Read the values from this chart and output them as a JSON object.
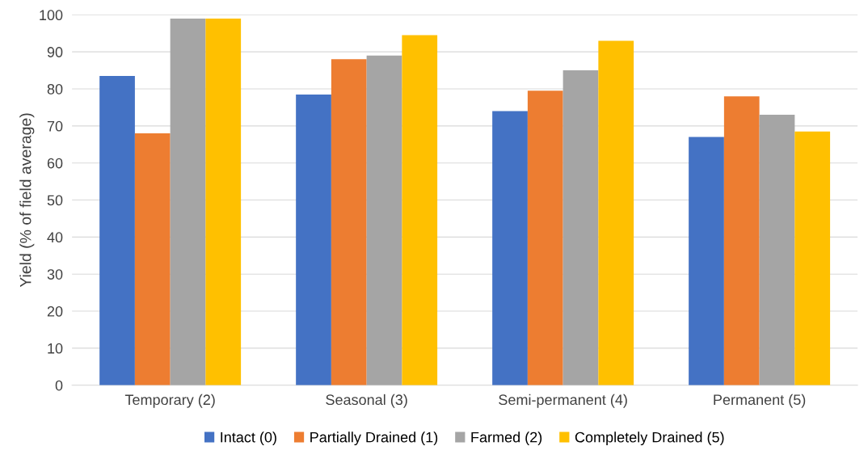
{
  "chart_data": {
    "type": "bar",
    "ylabel": "Yield (% of field average)",
    "categories": [
      "Temporary (2)",
      "Seasonal (3)",
      "Semi-permanent (4)",
      "Permanent (5)"
    ],
    "series": [
      {
        "name": "Intact (0)",
        "color": "#4472c4",
        "values": [
          83.5,
          78.5,
          74,
          67
        ]
      },
      {
        "name": "Partially Drained (1)",
        "color": "#ed7d31",
        "values": [
          68,
          88,
          79.5,
          78
        ]
      },
      {
        "name": "Farmed (2)",
        "color": "#a5a5a5",
        "values": [
          99,
          89,
          85,
          73
        ]
      },
      {
        "name": "Completely Drained (5)",
        "color": "#ffc000",
        "values": [
          99,
          94.5,
          93,
          68.5
        ]
      }
    ],
    "ylim": [
      0,
      100
    ],
    "yticks": [
      0,
      10,
      20,
      30,
      40,
      50,
      60,
      70,
      80,
      90,
      100
    ],
    "grid": "y",
    "legend": "bottom"
  }
}
